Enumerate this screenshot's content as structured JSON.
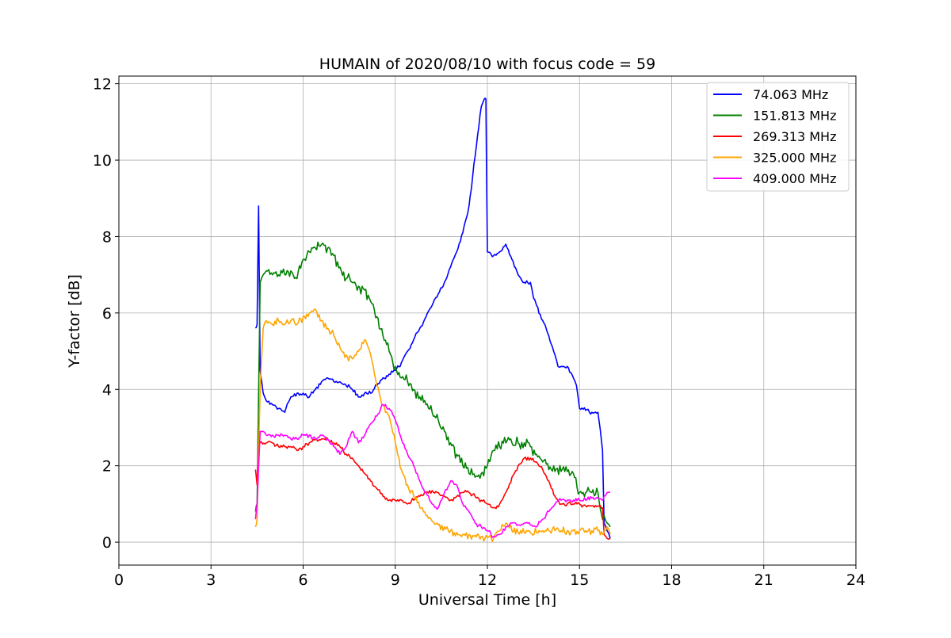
{
  "chart_data": {
    "type": "line",
    "title": "HUMAIN of 2020/08/10 with focus code = 59",
    "xlabel": "Universal Time [h]",
    "ylabel": "Y-factor [dB]",
    "xlim": [
      0,
      24
    ],
    "ylim": [
      -0.6,
      12.2
    ],
    "xticks": [
      0,
      3,
      6,
      9,
      12,
      15,
      18,
      21,
      24
    ],
    "yticks": [
      0,
      2,
      4,
      6,
      8,
      10,
      12
    ],
    "grid": true,
    "legend_position": "top-right",
    "series": [
      {
        "name": " 74.063 MHz",
        "color": "#0000ff",
        "x": [
          4.45,
          4.5,
          4.55,
          4.6,
          4.7,
          4.8,
          5.0,
          5.2,
          5.4,
          5.6,
          5.8,
          6.0,
          6.2,
          6.4,
          6.6,
          6.8,
          7.0,
          7.2,
          7.4,
          7.6,
          7.8,
          8.0,
          8.2,
          8.4,
          8.6,
          8.8,
          9.0,
          9.2,
          9.4,
          9.6,
          9.8,
          10.0,
          10.2,
          10.4,
          10.6,
          10.8,
          11.0,
          11.2,
          11.4,
          11.6,
          11.8,
          11.9,
          11.95,
          12.0,
          12.2,
          12.4,
          12.6,
          12.8,
          13.0,
          13.2,
          13.4,
          13.5,
          13.6,
          13.8,
          14.0,
          14.2,
          14.3,
          14.4,
          14.6,
          14.8,
          14.9,
          15.0,
          15.2,
          15.4,
          15.6,
          15.75,
          15.8,
          15.9,
          16.0
        ],
        "y": [
          5.6,
          5.7,
          8.8,
          4.5,
          3.9,
          3.7,
          3.6,
          3.5,
          3.4,
          3.8,
          3.9,
          3.9,
          3.8,
          4.0,
          4.2,
          4.3,
          4.2,
          4.2,
          4.1,
          4.0,
          3.8,
          3.9,
          3.9,
          4.1,
          4.3,
          4.4,
          4.5,
          4.7,
          5.0,
          5.3,
          5.6,
          5.9,
          6.2,
          6.5,
          6.8,
          7.2,
          7.6,
          8.1,
          8.8,
          10.1,
          11.4,
          11.6,
          11.6,
          7.6,
          7.5,
          7.6,
          7.8,
          7.4,
          7.0,
          6.8,
          6.8,
          6.4,
          6.2,
          5.8,
          5.4,
          4.9,
          4.6,
          4.6,
          4.6,
          4.3,
          4.1,
          3.5,
          3.45,
          3.4,
          3.4,
          2.4,
          0.5,
          0.3,
          0.1
        ]
      },
      {
        "name": "151.813 MHz",
        "color": "#008000",
        "x": [
          4.45,
          4.5,
          4.6,
          4.7,
          4.8,
          5.0,
          5.2,
          5.4,
          5.6,
          5.8,
          6.0,
          6.2,
          6.4,
          6.6,
          6.8,
          7.0,
          7.2,
          7.4,
          7.6,
          7.8,
          8.0,
          8.2,
          8.4,
          8.6,
          8.8,
          9.0,
          9.2,
          9.4,
          9.6,
          9.8,
          10.0,
          10.2,
          10.4,
          10.6,
          10.8,
          11.0,
          11.2,
          11.4,
          11.6,
          11.8,
          12.0,
          12.2,
          12.4,
          12.6,
          12.8,
          13.0,
          13.2,
          13.4,
          13.6,
          13.8,
          14.0,
          14.2,
          14.4,
          14.6,
          14.8,
          15.0,
          15.2,
          15.4,
          15.6,
          15.75,
          15.8,
          15.9,
          16.0
        ],
        "y": [
          0.8,
          1.0,
          6.8,
          7.0,
          7.1,
          7.0,
          7.0,
          7.0,
          7.1,
          6.9,
          7.4,
          7.6,
          7.7,
          7.8,
          7.7,
          7.5,
          7.2,
          6.9,
          6.8,
          6.7,
          6.6,
          6.3,
          5.9,
          5.4,
          5.0,
          4.6,
          4.3,
          4.2,
          4.0,
          3.8,
          3.6,
          3.4,
          3.2,
          2.9,
          2.6,
          2.3,
          2.0,
          1.8,
          1.7,
          1.8,
          2.0,
          2.4,
          2.5,
          2.6,
          2.6,
          2.6,
          2.6,
          2.5,
          2.3,
          2.1,
          1.9,
          1.85,
          1.85,
          1.85,
          1.8,
          1.3,
          1.3,
          1.3,
          1.3,
          0.6,
          0.7,
          0.5,
          0.4
        ]
      },
      {
        "name": "269.313 MHz",
        "color": "#ff0000",
        "x": [
          4.45,
          4.5,
          4.55,
          4.6,
          4.8,
          5.0,
          5.2,
          5.4,
          5.6,
          5.8,
          6.0,
          6.2,
          6.4,
          6.6,
          6.8,
          7.0,
          7.2,
          7.4,
          7.6,
          7.8,
          8.0,
          8.2,
          8.4,
          8.6,
          8.8,
          9.0,
          9.2,
          9.4,
          9.6,
          9.8,
          10.0,
          10.2,
          10.4,
          10.6,
          10.8,
          11.0,
          11.2,
          11.4,
          11.6,
          11.8,
          12.0,
          12.2,
          12.4,
          12.6,
          12.8,
          13.0,
          13.2,
          13.4,
          13.6,
          13.8,
          14.0,
          14.2,
          14.4,
          14.6,
          14.8,
          15.0,
          15.2,
          15.4,
          15.6,
          15.75,
          15.8,
          15.9,
          16.0
        ],
        "y": [
          1.9,
          1.5,
          2.6,
          2.6,
          2.6,
          2.6,
          2.5,
          2.5,
          2.5,
          2.4,
          2.5,
          2.6,
          2.7,
          2.7,
          2.7,
          2.6,
          2.5,
          2.3,
          2.2,
          2.0,
          1.8,
          1.6,
          1.4,
          1.2,
          1.1,
          1.1,
          1.1,
          1.0,
          1.1,
          1.2,
          1.3,
          1.35,
          1.3,
          1.2,
          1.1,
          1.2,
          1.3,
          1.3,
          1.2,
          1.1,
          1.0,
          0.9,
          1.0,
          1.3,
          1.7,
          2.0,
          2.2,
          2.2,
          2.1,
          1.9,
          1.6,
          1.2,
          1.0,
          1.0,
          1.0,
          1.0,
          0.95,
          0.95,
          0.95,
          0.9,
          0.2,
          0.1,
          0.1
        ]
      },
      {
        "name": "325.000 MHz",
        "color": "#ffa500",
        "x": [
          4.45,
          4.5,
          4.6,
          4.7,
          4.8,
          5.0,
          5.2,
          5.4,
          5.6,
          5.8,
          6.0,
          6.2,
          6.4,
          6.6,
          6.8,
          7.0,
          7.2,
          7.4,
          7.6,
          7.8,
          8.0,
          8.2,
          8.4,
          8.6,
          8.8,
          9.0,
          9.2,
          9.4,
          9.6,
          9.8,
          10.0,
          10.2,
          10.4,
          10.6,
          10.8,
          11.0,
          11.2,
          11.4,
          11.6,
          11.8,
          12.0,
          12.2,
          12.4,
          12.6,
          12.8,
          13.0,
          13.2,
          13.4,
          13.6,
          13.8,
          14.0,
          14.2,
          14.4,
          14.6,
          14.8,
          15.0,
          15.2,
          15.4,
          15.6,
          15.75,
          15.8,
          15.9,
          16.0
        ],
        "y": [
          0.4,
          0.6,
          4.0,
          5.6,
          5.8,
          5.7,
          5.8,
          5.7,
          5.8,
          5.7,
          5.9,
          6.0,
          6.1,
          5.8,
          5.6,
          5.4,
          5.1,
          4.9,
          4.8,
          5.0,
          5.3,
          4.9,
          4.1,
          3.6,
          3.3,
          2.6,
          1.9,
          1.5,
          1.2,
          0.9,
          0.7,
          0.55,
          0.45,
          0.4,
          0.3,
          0.25,
          0.2,
          0.2,
          0.18,
          0.15,
          0.12,
          0.1,
          0.3,
          0.5,
          0.3,
          0.25,
          0.25,
          0.25,
          0.25,
          0.3,
          0.3,
          0.3,
          0.3,
          0.3,
          0.3,
          0.3,
          0.3,
          0.3,
          0.3,
          0.2,
          0.3,
          0.4,
          0.2
        ]
      },
      {
        "name": "409.000 MHz",
        "color": "#ff00ff",
        "x": [
          4.45,
          4.5,
          4.6,
          4.7,
          4.8,
          5.0,
          5.2,
          5.4,
          5.6,
          5.8,
          6.0,
          6.2,
          6.4,
          6.6,
          6.8,
          7.0,
          7.2,
          7.4,
          7.6,
          7.8,
          8.0,
          8.2,
          8.4,
          8.6,
          8.8,
          9.0,
          9.2,
          9.4,
          9.6,
          9.8,
          10.0,
          10.2,
          10.4,
          10.6,
          10.8,
          11.0,
          11.2,
          11.4,
          11.6,
          11.8,
          12.0,
          12.2,
          12.4,
          12.6,
          12.8,
          13.0,
          13.2,
          13.4,
          13.6,
          13.8,
          14.0,
          14.2,
          14.4,
          14.6,
          14.8,
          15.0,
          15.2,
          15.4,
          15.6,
          15.75,
          15.8,
          15.9,
          16.0
        ],
        "y": [
          0.6,
          1.0,
          2.9,
          2.9,
          2.8,
          2.8,
          2.8,
          2.8,
          2.7,
          2.7,
          2.8,
          2.8,
          2.7,
          2.8,
          2.7,
          2.5,
          2.3,
          2.5,
          2.9,
          2.6,
          2.8,
          3.1,
          3.3,
          3.6,
          3.5,
          3.2,
          2.7,
          2.3,
          2.0,
          1.6,
          1.3,
          1.0,
          0.9,
          1.3,
          1.6,
          1.5,
          1.0,
          0.8,
          0.5,
          0.4,
          0.3,
          0.15,
          0.2,
          0.4,
          0.5,
          0.45,
          0.5,
          0.45,
          0.4,
          0.6,
          0.8,
          1.0,
          1.1,
          1.1,
          1.1,
          1.1,
          1.1,
          1.15,
          1.15,
          1.1,
          1.2,
          1.3,
          1.3
        ]
      }
    ]
  }
}
